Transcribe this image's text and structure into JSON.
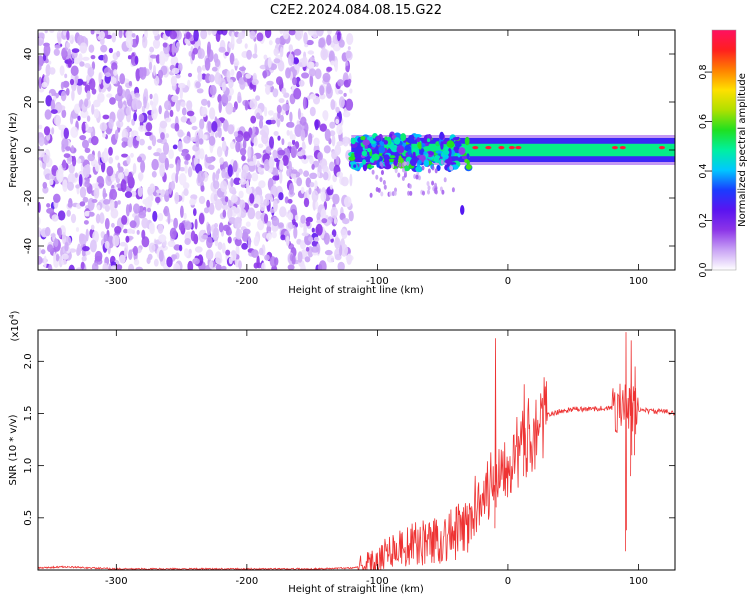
{
  "figure": {
    "title": "C2E2.2024.084.08.15.G22"
  },
  "chart_data": [
    {
      "type": "heatmap",
      "xlabel": "Height of straight line (km)",
      "ylabel": "Frequency (Hz)",
      "xlim": [
        -360,
        128
      ],
      "ylim": [
        -50,
        50
      ],
      "xticks": [
        -300,
        -200,
        -100,
        0,
        100
      ],
      "xtick_labels": [
        "-300",
        "-200",
        "-100",
        "0",
        "100"
      ],
      "yticks": [
        -40,
        -20,
        0,
        20,
        40
      ],
      "ytick_labels": [
        "-40",
        "-20",
        "0",
        "20",
        "40"
      ],
      "grid": false,
      "colorbar": {
        "label": "Normalized spectral amplitude",
        "range": [
          0.0,
          0.97
        ],
        "ticks": [
          0.0,
          0.2,
          0.4,
          0.6,
          0.8
        ],
        "tick_labels": [
          "0.0",
          "0.2",
          "0.4",
          "0.6",
          "0.8"
        ],
        "colormap": [
          "#ffffff",
          "#c9a3f5",
          "#8c35e8",
          "#5a14f0",
          "#1a3cff",
          "#00c8ff",
          "#00f0a0",
          "#20e020",
          "#b0e000",
          "#ffe000",
          "#ff8000",
          "#ff1f1f",
          "#ff1060"
        ]
      },
      "regions": [
        {
          "name": "noise",
          "x": [
            -360,
            -120
          ],
          "frequency": [
            -50,
            50
          ],
          "amplitude": [
            0.02,
            0.2
          ]
        },
        {
          "name": "signal band",
          "x": [
            -120,
            128
          ],
          "frequency": [
            -5,
            5
          ],
          "amplitude": [
            0.4,
            0.9
          ]
        },
        {
          "name": "feature",
          "x": [
            -35,
            -35
          ],
          "frequency": [
            -25,
            -25
          ],
          "amplitude": [
            0.25,
            0.25
          ]
        }
      ]
    },
    {
      "type": "line",
      "xlabel": "Height of straight line (km)",
      "ylabel": "SNR (10 * v/v)",
      "y_multiplier": "(x10",
      "y_multiplier_exp": "4",
      "y_multiplier_close": ")",
      "xlim": [
        -360,
        128
      ],
      "ylim": [
        0,
        2.3
      ],
      "xticks": [
        -300,
        -200,
        -100,
        0,
        100
      ],
      "xtick_labels": [
        "-300",
        "-200",
        "-100",
        "0",
        "100"
      ],
      "yticks": [
        0.5,
        1.0,
        1.5,
        2.0
      ],
      "ytick_labels": [
        "0.5",
        "1.0",
        "1.5",
        "2.0"
      ],
      "grid": false,
      "color": "#ee3333",
      "series": [
        {
          "x": [
            -360,
            -340,
            -300,
            -250,
            -200,
            -150,
            -120,
            -105,
            -100,
            -90,
            -80,
            -70,
            -60,
            -50,
            -40,
            -30,
            -25,
            -20,
            -15,
            -10,
            -5,
            0,
            5,
            10,
            15,
            20,
            25,
            30,
            40,
            50,
            60,
            70,
            80,
            85,
            90,
            93,
            96,
            100,
            105,
            110,
            115,
            120,
            128
          ],
          "y": [
            0.02,
            0.03,
            0.01,
            0.01,
            0.01,
            0.01,
            0.02,
            0.05,
            0.12,
            0.2,
            0.22,
            0.25,
            0.28,
            0.3,
            0.35,
            0.42,
            0.6,
            0.8,
            0.75,
            0.95,
            1.0,
            1.05,
            1.1,
            1.15,
            1.25,
            1.35,
            1.42,
            1.48,
            1.52,
            1.54,
            1.54,
            1.55,
            1.55,
            1.56,
            1.56,
            1.55,
            1.54,
            1.54,
            1.53,
            1.52,
            1.52,
            1.52,
            1.51
          ]
        }
      ],
      "spikes": [
        {
          "x": -10,
          "y": 2.22,
          "low": 0.4
        },
        {
          "x": 12,
          "y": 1.78,
          "low": 0.9
        },
        {
          "x": 90,
          "y": 2.28,
          "low": 0.18
        },
        {
          "x": 94,
          "y": 2.2,
          "low": 0.9
        },
        {
          "x": 97,
          "y": 1.95,
          "low": 1.1
        }
      ]
    }
  ]
}
